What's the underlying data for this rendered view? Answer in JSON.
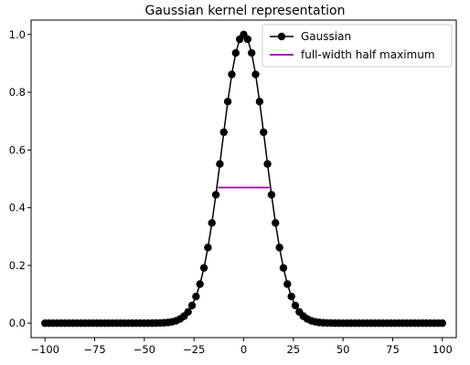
{
  "chart_data": {
    "type": "line",
    "title": "Gaussian kernel representation",
    "xlabel": "",
    "ylabel": "",
    "xlim": [
      -107,
      107
    ],
    "ylim": [
      -0.05,
      1.05
    ],
    "xticks": [
      -100,
      -75,
      -50,
      -25,
      0,
      25,
      50,
      75,
      100
    ],
    "xtick_labels": [
      "−100",
      "−75",
      "−50",
      "−25",
      "0",
      "25",
      "50",
      "75",
      "100"
    ],
    "yticks": [
      0.0,
      0.2,
      0.4,
      0.6,
      0.8,
      1.0
    ],
    "ytick_labels": [
      "0.0",
      "0.2",
      "0.4",
      "0.6",
      "0.8",
      "1.0"
    ],
    "grid": false,
    "legend_position": "top-right",
    "series": [
      {
        "name": "Gaussian",
        "color": "#000000",
        "marker": "circle",
        "x_range": [
          -100,
          100
        ],
        "x_step": 2,
        "sigma": 11,
        "peak": 1.0,
        "center": 0
      },
      {
        "name": "full-width half maximum",
        "color": "#9900aa",
        "marker": "none",
        "x": [
          -13,
          13
        ],
        "y": [
          0.47,
          0.47
        ]
      }
    ]
  }
}
